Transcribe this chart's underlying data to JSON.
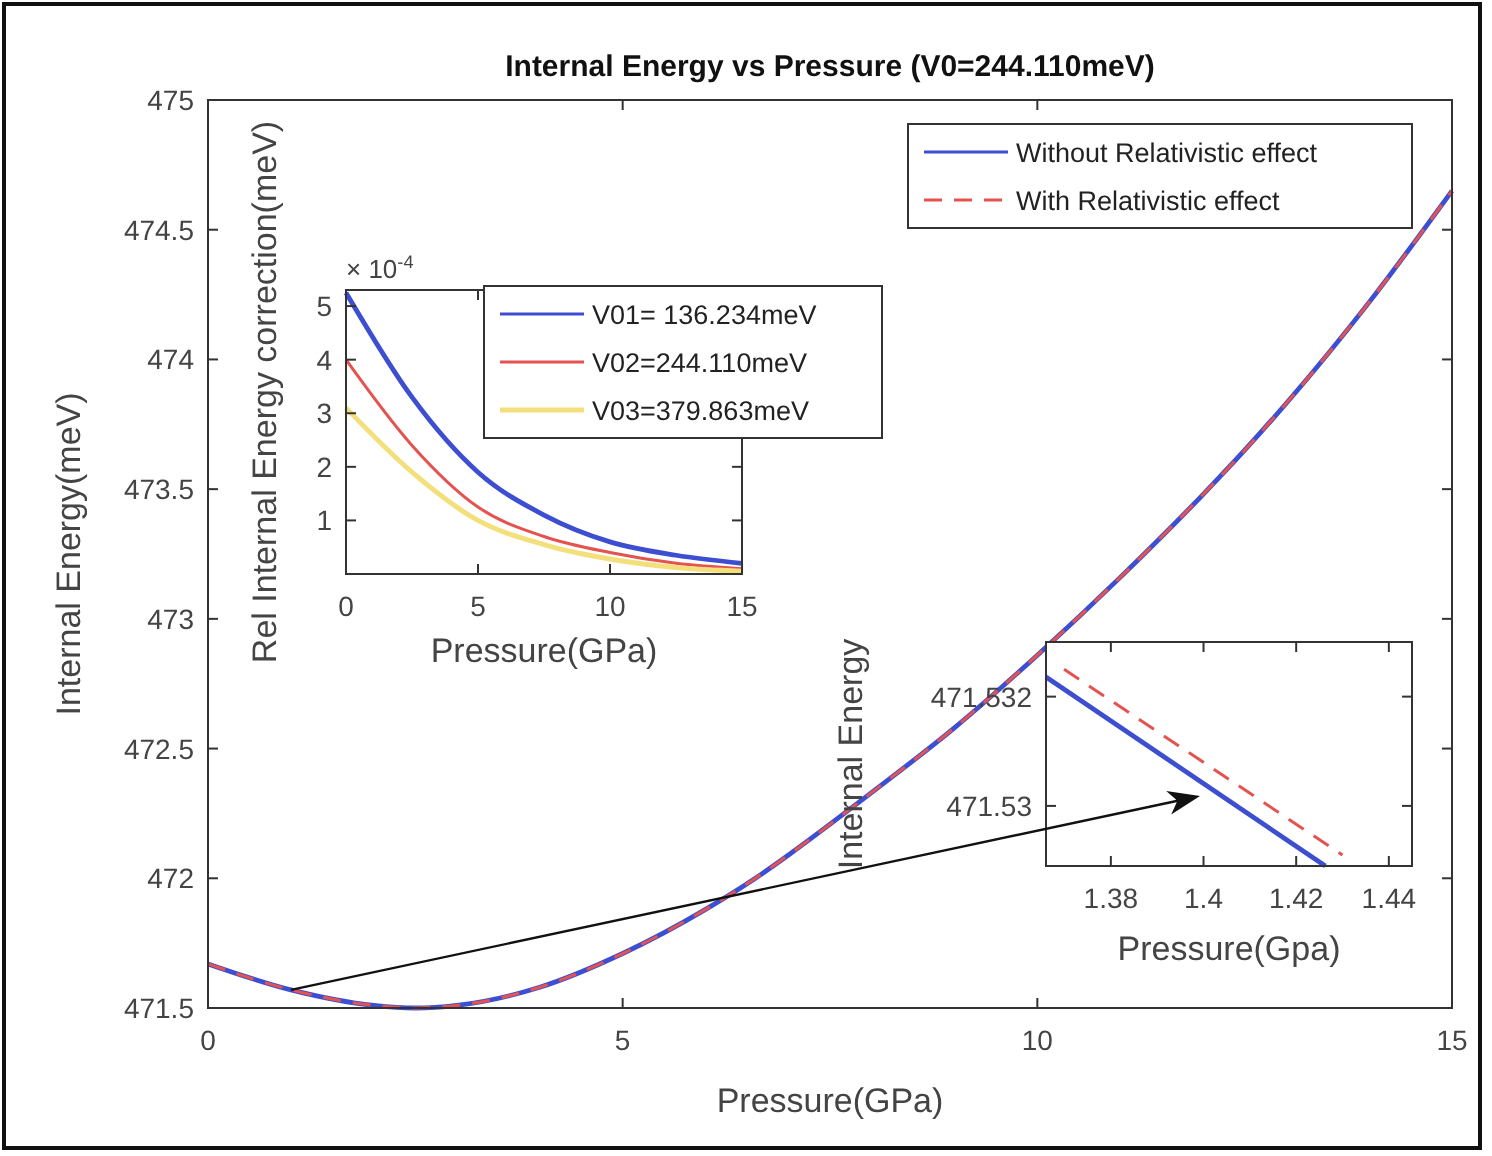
{
  "chart_data": [
    {
      "type": "line",
      "title": "Internal Energy vs Pressure (V0=244.110meV)",
      "xlabel": "Pressure(GPa)",
      "ylabel": "Internal Energy(meV)",
      "x": [
        0,
        1,
        2,
        2.5,
        3,
        4,
        5,
        6,
        6.6,
        7,
        8,
        9,
        10,
        11,
        12,
        12.5,
        13,
        14,
        15
      ],
      "xlim": [
        0,
        15
      ],
      "xticks": [
        0,
        5,
        10,
        15
      ],
      "ylim": [
        471.5,
        475
      ],
      "yticks": [
        471.5,
        472,
        472.5,
        473,
        473.5,
        474,
        474.5,
        475
      ],
      "legend": "top right",
      "grid": false,
      "series": [
        {
          "name": "Without Relativistic effect",
          "color": "#3d4fd0",
          "line_style": "solid",
          "values": [
            471.67,
            471.57,
            471.51,
            471.5,
            471.51,
            471.58,
            471.71,
            471.88,
            472.0,
            472.09,
            472.33,
            472.58,
            472.86,
            473.16,
            473.48,
            473.65,
            473.83,
            474.22,
            474.65
          ]
        },
        {
          "name": "With Relativistic effect",
          "color": "#e4534f",
          "line_style": "dashed",
          "values": [
            471.67,
            471.57,
            471.51,
            471.5,
            471.51,
            471.58,
            471.71,
            471.88,
            472.0,
            472.09,
            472.33,
            472.58,
            472.86,
            473.16,
            473.48,
            473.65,
            473.83,
            474.22,
            474.65
          ]
        }
      ]
    },
    {
      "type": "line",
      "xlabel": "Pressure(GPa)",
      "ylabel": "Rel Internal Energy correction(meV)",
      "annotations": [
        "× 10$^{-4}$"
      ],
      "x": [
        0,
        2.5,
        5,
        7.5,
        10,
        12.5,
        15
      ],
      "xlim": [
        0,
        15
      ],
      "xticks": [
        0,
        5,
        10,
        15
      ],
      "ylim": [
        0,
        5.3
      ],
      "yticks": [
        1,
        2,
        3,
        4,
        5
      ],
      "legend": "top right",
      "grid": false,
      "series": [
        {
          "name": "V01= 136.234meV",
          "color": "#3d4fd0",
          "line_style": "solid",
          "values": [
            5.25,
            3.3,
            1.9,
            1.1,
            0.6,
            0.35,
            0.2
          ]
        },
        {
          "name": "V02=244.110meV",
          "color": "#e4534f",
          "line_style": "solid",
          "values": [
            4.0,
            2.4,
            1.25,
            0.7,
            0.4,
            0.2,
            0.1
          ]
        },
        {
          "name": "V03=379.863meV",
          "color": "#f3e07c",
          "line_style": "solid",
          "values": [
            3.1,
            1.9,
            1.0,
            0.55,
            0.28,
            0.12,
            0.05
          ]
        }
      ]
    },
    {
      "type": "line",
      "xlabel": "Pressure(Gpa)",
      "ylabel": "Internal Energy",
      "xlim": [
        1.366,
        1.445
      ],
      "xticks": [
        1.38,
        1.4,
        1.42,
        1.44
      ],
      "ylim": [
        471.5289,
        471.533
      ],
      "yticks": [
        471.53,
        471.532
      ],
      "grid": false,
      "series": [
        {
          "color": "#3d4fd0",
          "line_style": "solid",
          "x": [
            1.366,
            1.4263
          ],
          "values": [
            471.53236,
            471.5289
          ]
        },
        {
          "color": "#e4534f",
          "line_style": "dashed",
          "x": [
            1.3699,
            1.43
          ],
          "values": [
            471.5325,
            471.5291
          ]
        }
      ]
    }
  ]
}
